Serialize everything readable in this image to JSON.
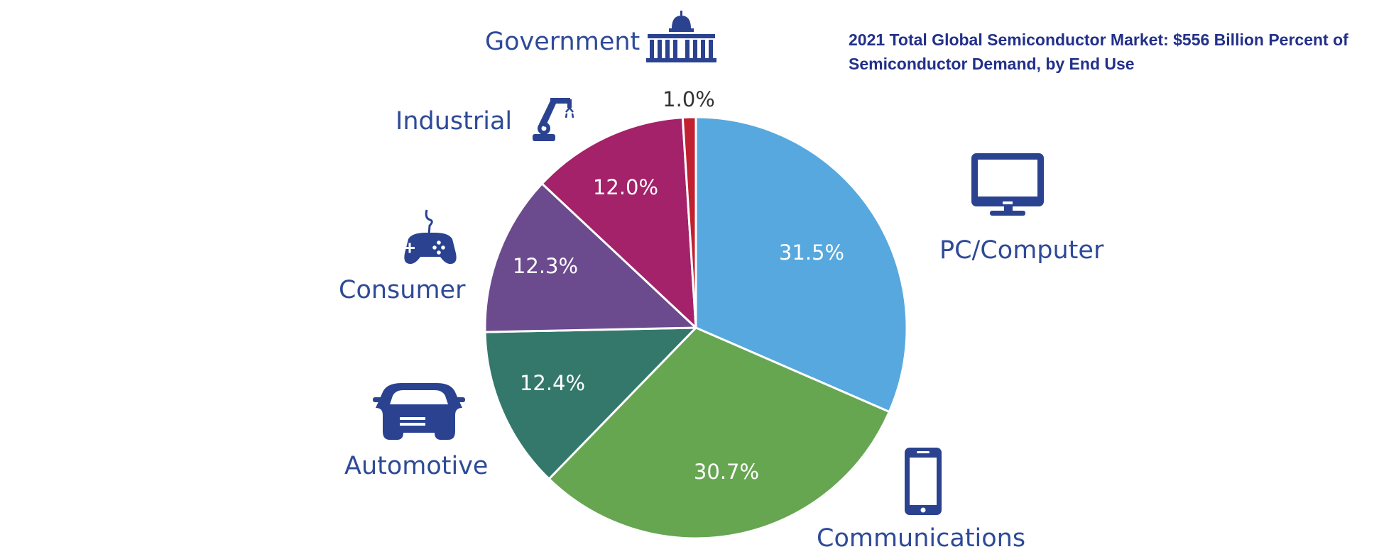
{
  "chart_data": {
    "type": "pie",
    "title": "2021 Total Global Semiconductor Market: $556 Billion Percent of Semiconductor Demand, by End Use",
    "title_lines": [
      "2021 Total Global Semiconductor Market: $556 Billion Percent of",
      "Semiconductor Demand, by End Use"
    ],
    "slices": [
      {
        "label": "PC/Computer",
        "value": 31.5,
        "value_label": "31.5%",
        "color": "#56a8de",
        "icon": "monitor-icon"
      },
      {
        "label": "Communications",
        "value": 30.7,
        "value_label": "30.7%",
        "color": "#66a651",
        "icon": "smartphone-icon"
      },
      {
        "label": "Automotive",
        "value": 12.4,
        "value_label": "12.4%",
        "color": "#33786b",
        "icon": "car-icon"
      },
      {
        "label": "Consumer",
        "value": 12.3,
        "value_label": "12.3%",
        "color": "#6b4b8e",
        "icon": "game-controller-icon"
      },
      {
        "label": "Industrial",
        "value": 12.0,
        "value_label": "12.0%",
        "color": "#a3226a",
        "icon": "robotic-arm-icon"
      },
      {
        "label": "Government",
        "value": 1.0,
        "value_label": "1.0%",
        "color": "#c0202f",
        "icon": "capitol-building-icon"
      }
    ],
    "start_angle": "12 o'clock",
    "direction": "clockwise",
    "legend": "none"
  },
  "colors": {
    "title": "#22308a",
    "category_labels": "#2e4a98",
    "icons": "#2a4290",
    "slice_border": "#ffffff"
  }
}
